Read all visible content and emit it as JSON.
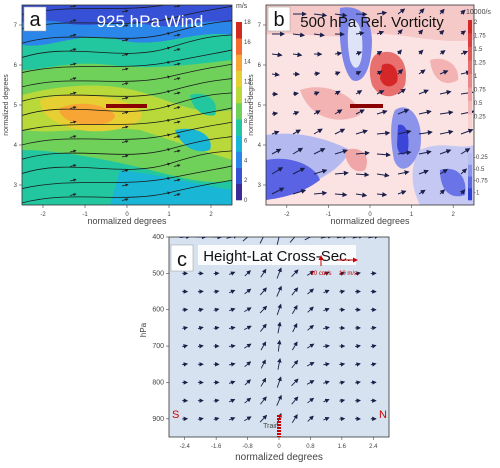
{
  "colors": {
    "wind_cmap": [
      "#3b2a98",
      "#3650d6",
      "#2a86e8",
      "#1ab6d6",
      "#22c7a0",
      "#6fd15a",
      "#b9d83a",
      "#e5cf32",
      "#f7a636",
      "#f56b2f",
      "#d22a1c"
    ],
    "vort_pos": "#d62728",
    "vort_neg": "#2b3fd6",
    "cross_bg": "#d6e2ef",
    "train_marker": "#8b0000",
    "sn_label": "#cc0000"
  },
  "chart_data": [
    {
      "id": "a",
      "type": "heatmap",
      "panel_label": "a",
      "title": "925 hPa Wind",
      "xlabel": "normalized degrees",
      "ylabel": "normalized degrees",
      "xlim": [
        -2.5,
        2.5
      ],
      "ylim": [
        2.5,
        7.5
      ],
      "xticks": [
        "-2",
        "-1",
        "0",
        "1",
        "2"
      ],
      "yticks": [
        "3",
        "4",
        "5",
        "6",
        "7"
      ],
      "colorbar": {
        "unit": "m/s",
        "range": [
          0,
          18
        ],
        "ticks": [
          "0",
          "2",
          "4",
          "6",
          "8",
          "10",
          "12",
          "14",
          "16",
          "18"
        ]
      },
      "overlay": "streamlines",
      "train_marker": {
        "x": [
          -0.4,
          0.4
        ],
        "y": 5.0
      }
    },
    {
      "id": "b",
      "type": "heatmap",
      "panel_label": "b",
      "title": "500 hPa Rel. Vorticity",
      "xlabel": "normalized degrees",
      "ylabel": "normalized degrees",
      "xlim": [
        -2.5,
        2.5
      ],
      "ylim": [
        2.5,
        7.5
      ],
      "xticks": [
        "-2",
        "-1",
        "0",
        "1",
        "2"
      ],
      "yticks": [
        "3",
        "4",
        "5",
        "6",
        "7"
      ],
      "colorbar": {
        "unit": "10000/s",
        "pos_ticks": [
          "2",
          "1.75",
          "1.5",
          "1.25",
          "1",
          "0.75",
          "0.5",
          "0.25"
        ],
        "neg_ticks": [
          "-0.25",
          "-0.5",
          "-0.75",
          "-1"
        ]
      },
      "overlay": "wind vectors",
      "train_marker": {
        "x": [
          -0.4,
          0.4
        ],
        "y": 5.0
      }
    },
    {
      "id": "c",
      "type": "scatter",
      "panel_label": "c",
      "title": "Height-Lat Cross-Sec.",
      "xlabel": "normalized degrees",
      "ylabel": "hPa",
      "xlim": [
        -2.8,
        2.8
      ],
      "ylim": [
        950,
        400
      ],
      "xticks": [
        "-2.4",
        "-1.6",
        "-0.8",
        "0",
        "0.8",
        "1.6",
        "2.4"
      ],
      "yticks": [
        "400",
        "500",
        "600",
        "700",
        "800",
        "900"
      ],
      "legend": {
        "vertical": "10 cm/s",
        "horizontal": "10 m/s"
      },
      "end_labels": {
        "left": "S",
        "right": "N"
      },
      "train_label": "Train",
      "x": [
        -2.4,
        -1.6,
        -0.8,
        0,
        0.8,
        1.6,
        2.4
      ],
      "levels": [
        400,
        500,
        600,
        700,
        800,
        900
      ]
    }
  ]
}
